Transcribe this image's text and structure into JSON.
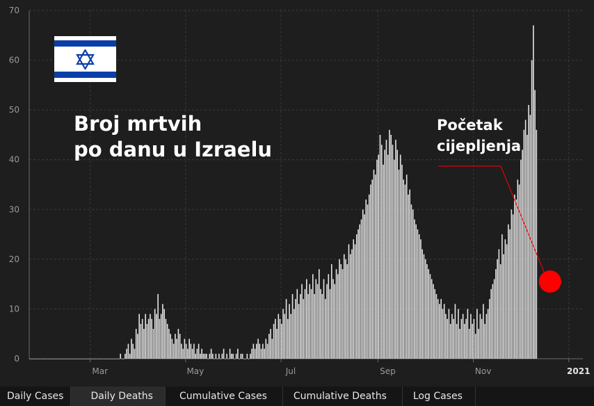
{
  "annotations": {
    "title": "Broj mrtvih\npo danu u Izraelu",
    "vaccination_label": "Početak\ncijepljenja",
    "vaccination_date": "2020-12-20",
    "marker_color": "#ff0000"
  },
  "tabs": [
    {
      "label": "Daily Cases",
      "active": false
    },
    {
      "label": "Daily Deaths",
      "active": true
    },
    {
      "label": "Cumulative Cases",
      "active": false
    },
    {
      "label": "Cumulative Deaths",
      "active": false
    },
    {
      "label": "Log Cases",
      "active": false
    }
  ],
  "colors": {
    "background": "#1e1e1e",
    "bar": "#e8e8e8",
    "grid": "#3a3a3a",
    "flag_blue": "#0a3fa8"
  },
  "chart_data": {
    "type": "bar",
    "title": "",
    "xlabel": "",
    "ylabel": "",
    "ylim": [
      0,
      70
    ],
    "yticks": [
      0,
      10,
      20,
      30,
      40,
      50,
      60,
      70
    ],
    "xlim": [
      "2020-01-22",
      "2021-01-10"
    ],
    "xticks": [
      {
        "label": "Mar",
        "date": "2020-03-01"
      },
      {
        "label": "May",
        "date": "2020-05-01"
      },
      {
        "label": "Jul",
        "date": "2020-07-01"
      },
      {
        "label": "Sep",
        "date": "2020-09-01"
      },
      {
        "label": "Nov",
        "date": "2020-11-01"
      },
      {
        "label": "2021",
        "date": "2021-01-01",
        "bold": true
      }
    ],
    "grid": true,
    "start_date": "2020-01-22",
    "values": [
      0,
      0,
      0,
      0,
      0,
      0,
      0,
      0,
      0,
      0,
      0,
      0,
      0,
      0,
      0,
      0,
      0,
      0,
      0,
      0,
      0,
      0,
      0,
      0,
      0,
      0,
      0,
      0,
      0,
      0,
      0,
      0,
      0,
      0,
      0,
      0,
      0,
      0,
      0,
      0,
      0,
      0,
      0,
      0,
      0,
      0,
      0,
      0,
      0,
      0,
      0,
      0,
      0,
      0,
      0,
      0,
      0,
      0,
      1,
      0,
      0,
      1,
      2,
      3,
      1,
      4,
      3,
      2,
      6,
      5,
      9,
      7,
      8,
      6,
      9,
      7,
      8,
      9,
      8,
      6,
      10,
      9,
      13,
      8,
      9,
      11,
      10,
      8,
      7,
      6,
      5,
      4,
      3,
      5,
      4,
      6,
      5,
      3,
      2,
      4,
      3,
      2,
      4,
      3,
      2,
      3,
      1,
      2,
      3,
      1,
      2,
      1,
      1,
      1,
      0,
      1,
      2,
      1,
      0,
      1,
      0,
      1,
      0,
      1,
      2,
      0,
      1,
      0,
      2,
      1,
      1,
      0,
      1,
      2,
      0,
      1,
      1,
      0,
      0,
      1,
      0,
      1,
      2,
      3,
      2,
      3,
      4,
      3,
      2,
      3,
      2,
      4,
      3,
      5,
      6,
      4,
      7,
      8,
      6,
      9,
      8,
      7,
      10,
      9,
      12,
      8,
      11,
      9,
      13,
      10,
      12,
      14,
      11,
      13,
      15,
      12,
      14,
      16,
      13,
      15,
      14,
      17,
      13,
      16,
      15,
      18,
      14,
      13,
      16,
      12,
      15,
      17,
      14,
      19,
      16,
      15,
      18,
      17,
      20,
      19,
      18,
      21,
      20,
      19,
      23,
      21,
      22,
      24,
      23,
      25,
      26,
      27,
      28,
      30,
      29,
      32,
      31,
      33,
      35,
      36,
      38,
      37,
      40,
      41,
      45,
      43,
      39,
      42,
      44,
      41,
      46,
      45,
      43,
      40,
      44,
      42,
      38,
      41,
      39,
      36,
      35,
      37,
      33,
      34,
      31,
      30,
      28,
      27,
      26,
      25,
      24,
      22,
      21,
      20,
      19,
      18,
      17,
      16,
      15,
      14,
      13,
      12,
      11,
      12,
      10,
      11,
      9,
      8,
      10,
      7,
      9,
      8,
      11,
      7,
      10,
      6,
      8,
      9,
      7,
      8,
      10,
      6,
      9,
      7,
      8,
      5,
      10,
      6,
      9,
      8,
      11,
      7,
      9,
      10,
      12,
      14,
      15,
      16,
      18,
      20,
      22,
      19,
      25,
      21,
      24,
      23,
      27,
      26,
      30,
      29,
      33,
      32,
      36,
      35,
      40,
      42,
      46,
      48,
      45,
      51,
      49,
      60,
      67,
      54,
      46
    ]
  }
}
